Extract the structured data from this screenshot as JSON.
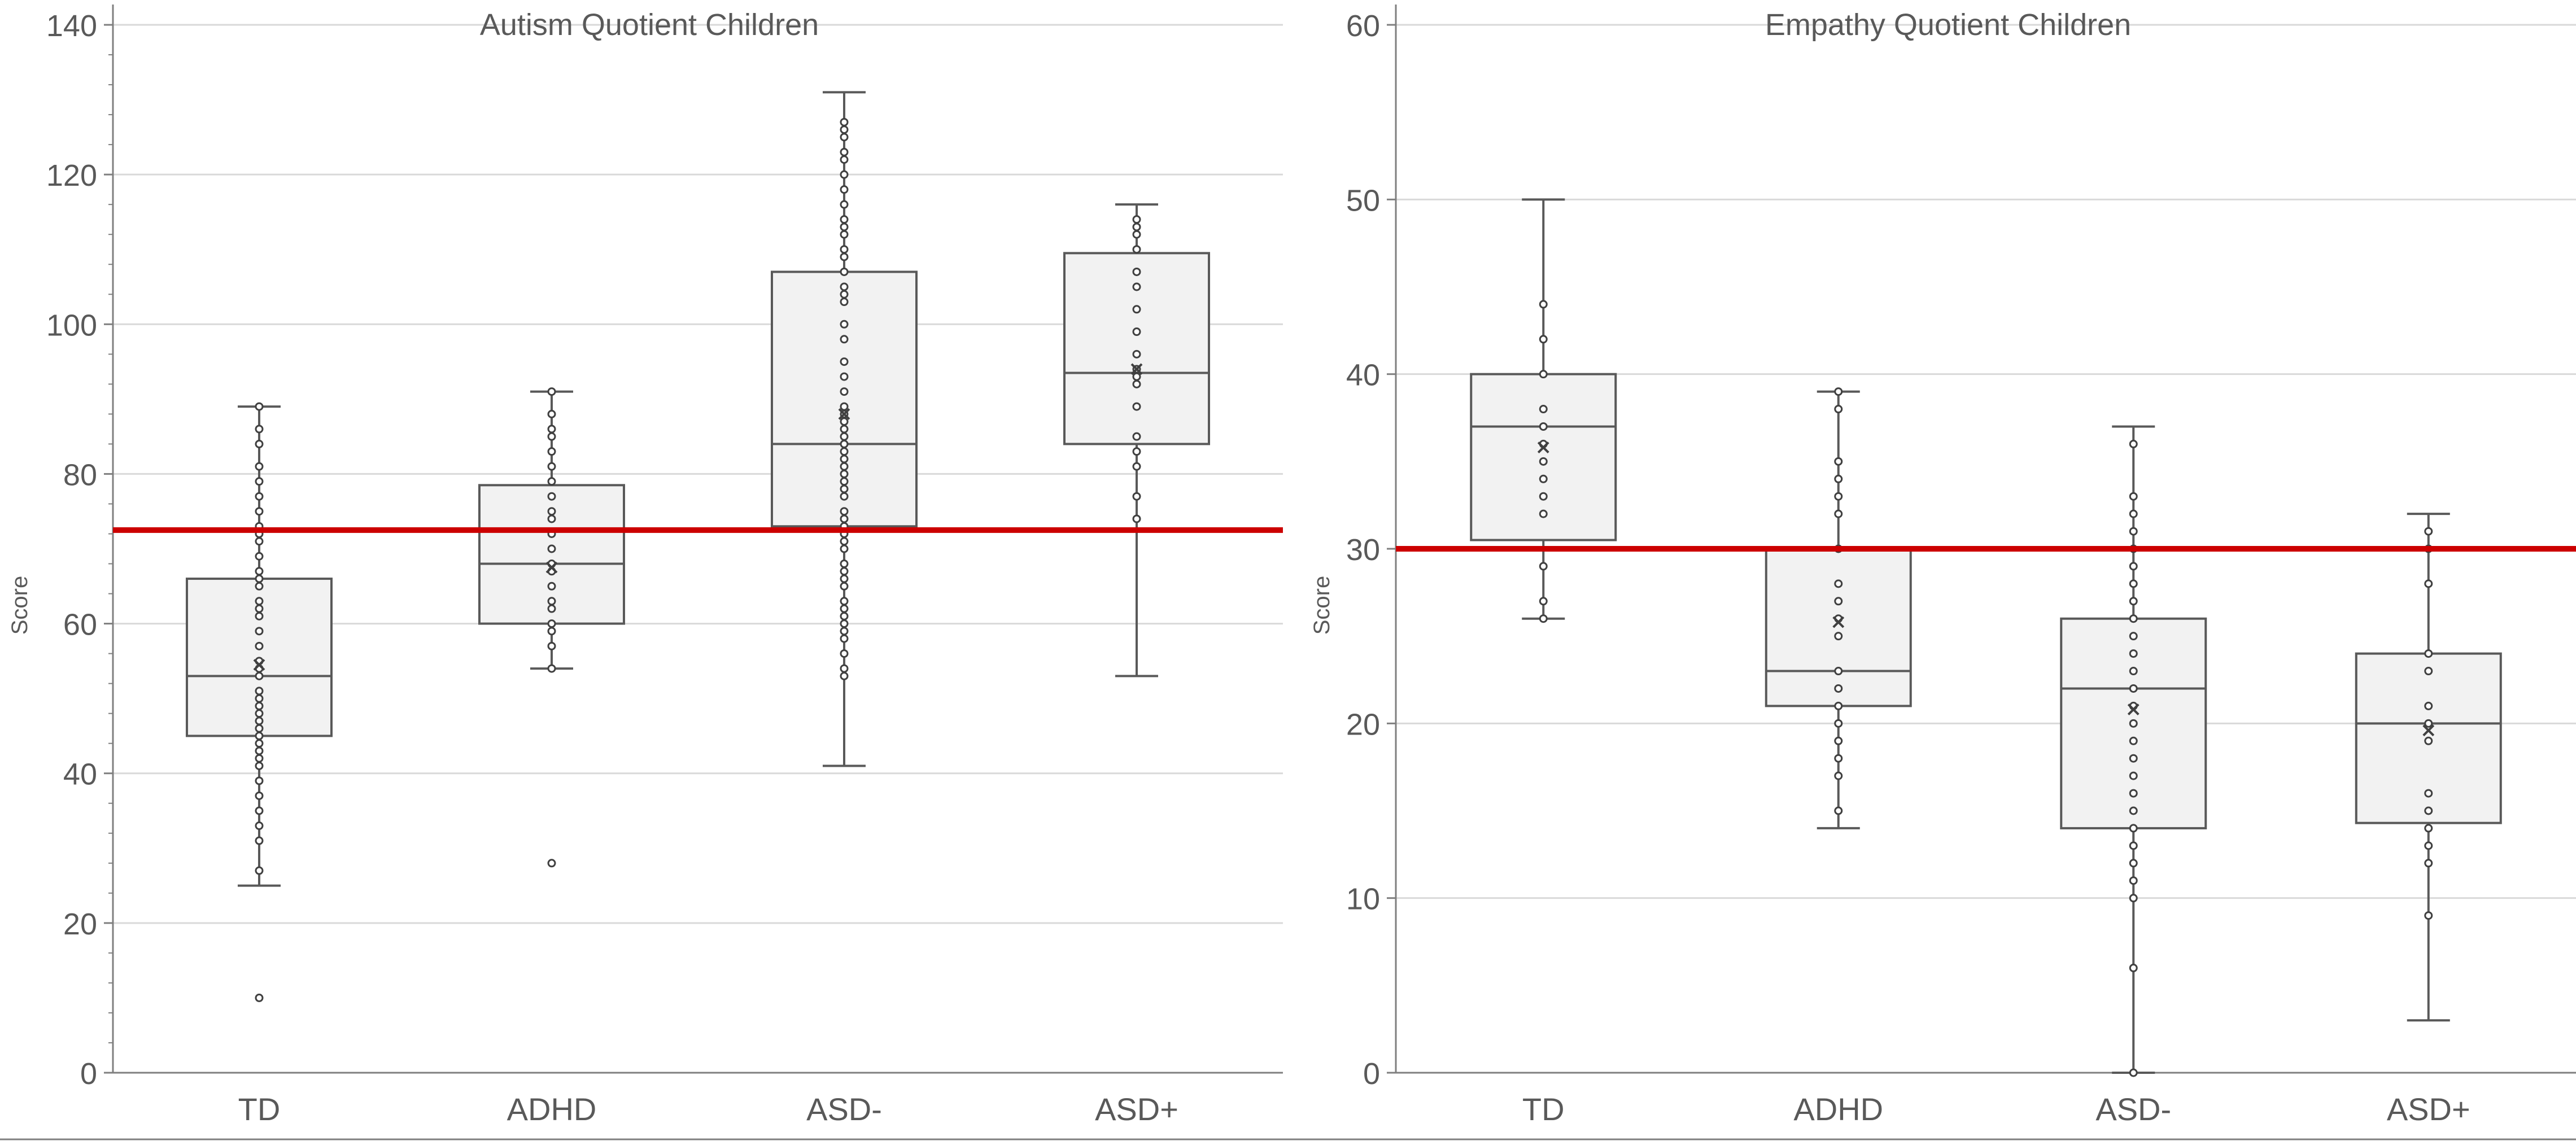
{
  "chart_data": [
    {
      "type": "box",
      "title": "Autism Quotient Children",
      "xlabel": "",
      "ylabel": "Score",
      "ylim": [
        0,
        140
      ],
      "yticks": [
        0,
        20,
        40,
        60,
        80,
        100,
        120,
        140
      ],
      "grid": true,
      "categories": [
        "TD",
        "ADHD",
        "ASD-",
        "ASD+"
      ],
      "threshold": 72.5,
      "threshold_color": "#cc0000",
      "box_fill": "#f2f2f2",
      "stroke": "#595959",
      "boxes": [
        {
          "category": "TD",
          "min": 25,
          "q1": 45,
          "median": 53,
          "q3": 66,
          "max": 89,
          "mean": 54.5,
          "points": [
            27,
            31,
            33,
            35,
            37,
            39,
            41,
            42,
            43,
            44,
            45,
            46,
            47,
            48,
            49,
            50,
            51,
            53,
            54,
            55,
            57,
            59,
            61,
            62,
            63,
            65,
            66,
            67,
            69,
            71,
            72,
            73,
            75,
            77,
            79,
            81,
            84,
            86,
            89
          ],
          "outliers": [
            10
          ]
        },
        {
          "category": "ADHD",
          "min": 54,
          "q1": 60,
          "median": 68,
          "q3": 78.5,
          "max": 91,
          "mean": 67.5,
          "points": [
            54,
            57,
            59,
            60,
            62,
            63,
            65,
            67,
            68,
            70,
            72,
            74,
            75,
            77,
            79,
            81,
            83,
            85,
            86,
            88,
            91
          ],
          "outliers": [
            28
          ]
        },
        {
          "category": "ASD-",
          "min": 41,
          "q1": 73,
          "median": 84,
          "q3": 107,
          "max": 131,
          "mean": 88,
          "points": [
            53,
            54,
            56,
            58,
            59,
            60,
            61,
            62,
            63,
            65,
            66,
            67,
            68,
            70,
            71,
            72,
            73,
            74,
            75,
            77,
            78,
            79,
            80,
            81,
            82,
            83,
            84,
            85,
            86,
            87,
            88,
            89,
            91,
            93,
            95,
            98,
            100,
            103,
            104,
            105,
            107,
            109,
            110,
            112,
            113,
            114,
            116,
            118,
            120,
            122,
            123,
            125,
            126,
            127
          ],
          "outliers": []
        },
        {
          "category": "ASD+",
          "min": 53,
          "q1": 84,
          "median": 93.5,
          "q3": 109.5,
          "max": 116,
          "mean": 94,
          "points": [
            74,
            77,
            81,
            83,
            85,
            89,
            92,
            93,
            94,
            96,
            99,
            102,
            105,
            107,
            110,
            112,
            113,
            114
          ],
          "outliers": []
        }
      ]
    },
    {
      "type": "box",
      "title": "Empathy Quotient Children",
      "xlabel": "",
      "ylabel": "Score",
      "ylim": [
        0,
        60
      ],
      "yticks": [
        0,
        10,
        20,
        30,
        40,
        50,
        60
      ],
      "grid": true,
      "categories": [
        "TD",
        "ADHD",
        "ASD-",
        "ASD+"
      ],
      "threshold": 30,
      "threshold_color": "#cc0000",
      "box_fill": "#f2f2f2",
      "stroke": "#595959",
      "boxes": [
        {
          "category": "TD",
          "min": 26,
          "q1": 30.5,
          "median": 37,
          "q3": 40,
          "max": 50,
          "mean": 35.8,
          "points": [
            26,
            27,
            29,
            32,
            33,
            34,
            35,
            36,
            37,
            38,
            40,
            42,
            44
          ],
          "outliers": []
        },
        {
          "category": "ADHD",
          "min": 14,
          "q1": 21,
          "median": 23,
          "q3": 30,
          "max": 39,
          "mean": 25.8,
          "points": [
            15,
            17,
            18,
            19,
            20,
            21,
            22,
            23,
            25,
            26,
            27,
            28,
            30,
            32,
            33,
            34,
            35,
            38,
            39
          ],
          "outliers": []
        },
        {
          "category": "ASD-",
          "min": 0,
          "q1": 14,
          "median": 22,
          "q3": 26,
          "max": 37,
          "mean": 20.8,
          "points": [
            0,
            6,
            10,
            11,
            12,
            13,
            14,
            15,
            16,
            17,
            18,
            19,
            20,
            21,
            22,
            23,
            24,
            25,
            26,
            27,
            28,
            29,
            30,
            31,
            32,
            33,
            36
          ],
          "outliers": []
        },
        {
          "category": "ASD+",
          "min": 3,
          "q1": 14.3,
          "median": 20,
          "q3": 24,
          "max": 32,
          "mean": 19.6,
          "points": [
            9,
            12,
            13,
            14,
            15,
            16,
            19,
            20,
            21,
            23,
            24,
            28,
            30,
            31
          ],
          "outliers": []
        }
      ]
    }
  ]
}
